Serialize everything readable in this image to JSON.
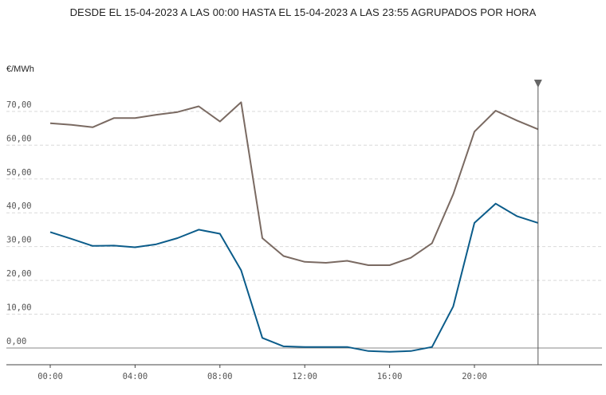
{
  "title": "DESDE EL 15-04-2023 A LAS 00:00 HASTA EL 15-04-2023 A LAS 23:55 AGRUPADOS POR HORA",
  "chart_data": {
    "type": "line",
    "title": "DESDE EL 15-04-2023 A LAS 00:00 HASTA EL 15-04-2023 A LAS 23:55 AGRUPADOS POR HORA",
    "ylabel": "€/MWh",
    "xlabel": "",
    "x": [
      "00:00",
      "01:00",
      "02:00",
      "03:00",
      "04:00",
      "05:00",
      "06:00",
      "07:00",
      "08:00",
      "09:00",
      "10:00",
      "11:00",
      "12:00",
      "13:00",
      "14:00",
      "15:00",
      "16:00",
      "17:00",
      "18:00",
      "19:00",
      "20:00",
      "21:00",
      "22:00",
      "23:00"
    ],
    "x_tick_labels": [
      "00:00",
      "04:00",
      "08:00",
      "12:00",
      "16:00",
      "20:00"
    ],
    "y_tick_labels": [
      "0,00",
      "10,00",
      "20,00",
      "30,00",
      "40,00",
      "50,00",
      "60,00",
      "70,00"
    ],
    "ylim": [
      -5,
      80
    ],
    "grid": true,
    "series": [
      {
        "color": "#7a6a62",
        "values": [
          66.5,
          66.0,
          65.3,
          68.0,
          68.0,
          69.0,
          69.8,
          71.5,
          67.0,
          72.7,
          32.5,
          27.2,
          25.5,
          25.2,
          25.8,
          24.5,
          24.5,
          26.7,
          31.0,
          45.5,
          64.0,
          70.2,
          67.3,
          64.7
        ]
      },
      {
        "color": "#0b5c8a",
        "values": [
          34.3,
          32.3,
          30.2,
          30.3,
          29.8,
          30.7,
          32.5,
          35.0,
          33.8,
          23.0,
          3.0,
          0.5,
          0.3,
          0.3,
          0.3,
          -0.9,
          -1.1,
          -0.9,
          0.3,
          12.3,
          37.0,
          42.7,
          39.0,
          37.0
        ]
      }
    ],
    "cursor_at": "23:00"
  }
}
